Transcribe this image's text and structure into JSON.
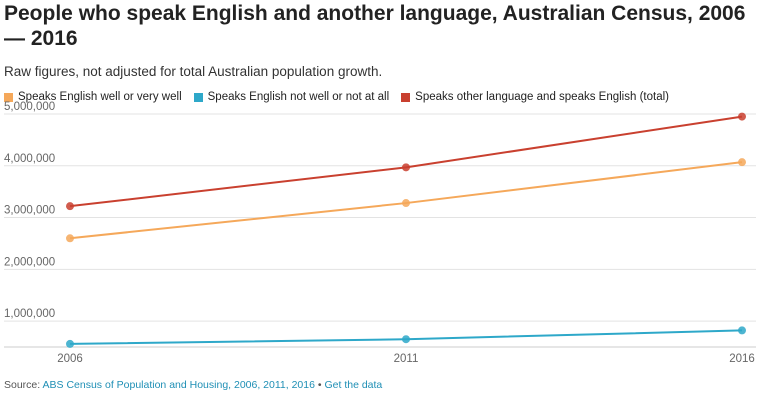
{
  "title": "People who speak English and another language, Australian Census, 2006 — 2016",
  "subtitle": "Raw figures, not adjusted for total Australian population growth.",
  "source": {
    "prefix": "Source:",
    "text": "ABS Census of Population and Housing, 2006, 2011, 2016",
    "separator": "•",
    "link": "Get the data"
  },
  "chart_data": {
    "type": "line",
    "x": [
      "2006",
      "2011",
      "2016"
    ],
    "xlabel": "",
    "ylabel": "",
    "ylim": [
      500000,
      5000000
    ],
    "yticks": [
      1000000,
      2000000,
      3000000,
      4000000,
      5000000
    ],
    "ytick_labels": [
      "1,000,000",
      "2,000,000",
      "3,000,000",
      "4,000,000",
      "5,000,000"
    ],
    "grid": true,
    "legend_position": "top-left",
    "series": [
      {
        "name": "Speaks English well or very well",
        "color": "#f5a85a",
        "values": [
          2600000,
          3280000,
          4070000
        ]
      },
      {
        "name": "Speaks English not well or not at all",
        "color": "#2ea8c9",
        "values": [
          560000,
          650000,
          820000
        ]
      },
      {
        "name": "Speaks other language and speaks English (total)",
        "color": "#c9402f",
        "values": [
          3220000,
          3970000,
          4950000
        ]
      }
    ]
  }
}
